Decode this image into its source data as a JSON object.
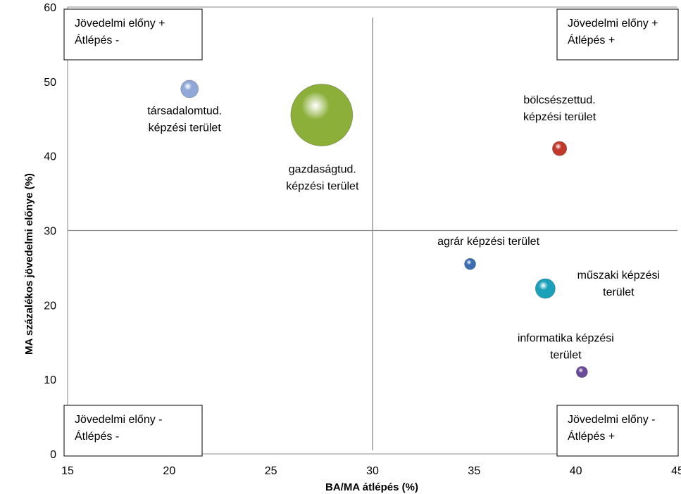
{
  "chart_data": {
    "type": "bubble",
    "xlabel": "BA/MA átlépés (%)",
    "ylabel": "MA százalékos jövedelmi előnye (%)",
    "xlim": [
      15,
      45
    ],
    "ylim": [
      0,
      60
    ],
    "x_ticks": [
      15,
      20,
      25,
      30,
      35,
      40,
      45
    ],
    "y_ticks": [
      0,
      10,
      20,
      30,
      40,
      50,
      60
    ],
    "reference_lines": {
      "x": 30,
      "y": 30
    },
    "points": [
      {
        "label": [
          "társadalomtud.",
          "képzési terület"
        ],
        "x": 21,
        "y": 49,
        "size": 3.3,
        "color": "#8fa8d8"
      },
      {
        "label": [
          "gazdaságtud.",
          "képzési terület"
        ],
        "x": 27.5,
        "y": 45.5,
        "size": 41,
        "color": "#8caf3a"
      },
      {
        "label": [
          "bölcsészettud.",
          "képzési terület"
        ],
        "x": 39.2,
        "y": 41,
        "size": 2.2,
        "color": "#c0392b"
      },
      {
        "label": [
          "agrár képzési terület"
        ],
        "x": 34.8,
        "y": 25.5,
        "size": 0.8,
        "color": "#3b6db0"
      },
      {
        "label": [
          "műszaki képzési",
          "terület"
        ],
        "x": 38.5,
        "y": 22.2,
        "size": 4.2,
        "color": "#1aa0b8"
      },
      {
        "label": [
          "informatika képzési",
          "terület"
        ],
        "x": 40.3,
        "y": 11,
        "size": 0.6,
        "color": "#6a4a9a"
      }
    ],
    "quadrant_boxes": [
      {
        "lines": [
          "Jövedelmi előny +",
          "Átlépés -"
        ],
        "position": "top-left"
      },
      {
        "lines": [
          "Jövedelmi előny +",
          "Átlépés +"
        ],
        "position": "top-right"
      },
      {
        "lines": [
          "Jövedelmi előny -",
          "Átlépés -"
        ],
        "position": "bottom-left"
      },
      {
        "lines": [
          "Jövedelmi előny -",
          "Átlépés +"
        ],
        "position": "bottom-right"
      }
    ]
  }
}
